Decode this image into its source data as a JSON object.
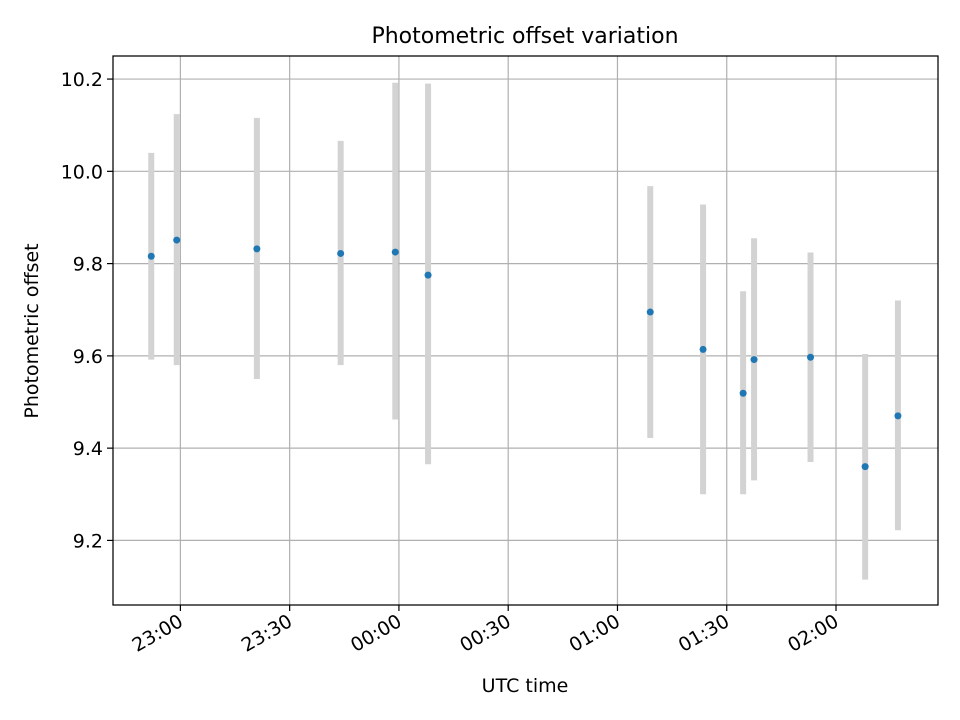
{
  "chart_data": {
    "type": "scatter",
    "title": "Photometric offset variation",
    "xlabel": "UTC time",
    "ylabel": "Photometric offset",
    "grid": true,
    "legend": "none",
    "x_ticks": [
      "23:00",
      "23:30",
      "00:00",
      "00:30",
      "01:00",
      "01:30",
      "02:00"
    ],
    "y_ticks": [
      "9.2",
      "9.4",
      "9.6",
      "9.8",
      "10.0",
      "10.2"
    ],
    "xlim": [
      "22:41:30",
      "02:28:00"
    ],
    "ylim": [
      9.06,
      10.25
    ],
    "series": [
      {
        "marker_color": "#1f77b4",
        "errorbar_color": "#d3d3d3",
        "points": [
          {
            "x": "22:52",
            "y": 9.816,
            "yerr_low": 9.592,
            "yerr_high": 10.04
          },
          {
            "x": "22:59",
            "y": 9.851,
            "yerr_low": 9.58,
            "yerr_high": 10.124
          },
          {
            "x": "23:21",
            "y": 9.832,
            "yerr_low": 9.55,
            "yerr_high": 10.116
          },
          {
            "x": "23:44",
            "y": 9.822,
            "yerr_low": 9.58,
            "yerr_high": 10.066
          },
          {
            "x": "23:59",
            "y": 9.825,
            "yerr_low": 9.462,
            "yerr_high": 10.192
          },
          {
            "x": "00:08",
            "y": 9.775,
            "yerr_low": 9.365,
            "yerr_high": 10.19
          },
          {
            "x": "01:09",
            "y": 9.695,
            "yerr_low": 9.422,
            "yerr_high": 9.968
          },
          {
            "x": "01:23:30",
            "y": 9.614,
            "yerr_low": 9.3,
            "yerr_high": 9.928
          },
          {
            "x": "01:34:30",
            "y": 9.519,
            "yerr_low": 9.3,
            "yerr_high": 9.74
          },
          {
            "x": "01:37:30",
            "y": 9.592,
            "yerr_low": 9.33,
            "yerr_high": 9.855
          },
          {
            "x": "01:53",
            "y": 9.597,
            "yerr_low": 9.37,
            "yerr_high": 9.824
          },
          {
            "x": "02:08",
            "y": 9.36,
            "yerr_low": 9.115,
            "yerr_high": 9.604
          },
          {
            "x": "02:17",
            "y": 9.47,
            "yerr_low": 9.222,
            "yerr_high": 9.72
          }
        ]
      }
    ]
  }
}
